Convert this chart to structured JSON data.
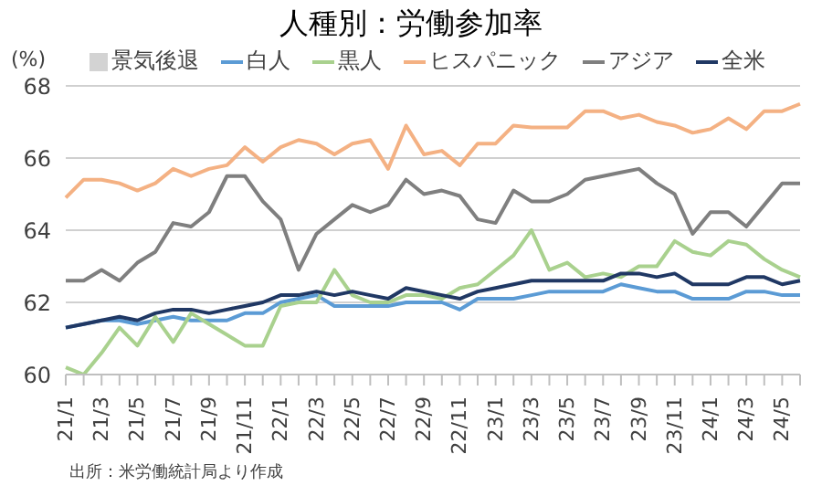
{
  "chart_data": {
    "type": "line",
    "title": "人種別：労働参加率",
    "ylabel": "(%)",
    "categories": [
      "21/1",
      null,
      "21/3",
      null,
      "21/5",
      null,
      "21/7",
      null,
      "21/9",
      null,
      "21/11",
      null,
      "22/1",
      null,
      "22/3",
      null,
      "22/5",
      null,
      "22/7",
      null,
      "22/9",
      null,
      "22/11",
      null,
      "23/1",
      null,
      "23/3",
      null,
      "23/5",
      null,
      "23/7",
      null,
      "23/9",
      null,
      "23/11",
      null,
      "24/1",
      null,
      "24/3",
      null,
      "24/5",
      null
    ],
    "ylim": [
      60,
      68
    ],
    "yticks": [
      60,
      62,
      64,
      66,
      68
    ],
    "grid": "y",
    "legend": "top",
    "marker": "none",
    "line_style": "solid",
    "series": [
      {
        "name": "景気後退",
        "type": "area",
        "color": "#d3d3d3",
        "values": [
          null,
          null,
          null,
          null,
          null,
          null,
          null,
          null,
          null,
          null,
          null,
          null,
          null,
          null,
          null,
          null,
          null,
          null,
          null,
          null,
          null,
          null,
          null,
          null,
          null,
          null,
          null,
          null,
          null,
          null,
          null,
          null,
          null,
          null,
          null,
          null,
          null,
          null,
          null,
          null,
          null,
          null
        ]
      },
      {
        "name": "白人",
        "color": "#5b9bd5",
        "values": [
          61.3,
          61.4,
          61.5,
          61.5,
          61.4,
          61.5,
          61.6,
          61.5,
          61.5,
          61.5,
          61.7,
          61.7,
          62.0,
          62.1,
          62.2,
          61.9,
          61.9,
          61.9,
          61.9,
          62.0,
          62.0,
          62.0,
          61.8,
          62.1,
          62.1,
          62.1,
          62.2,
          62.3,
          62.3,
          62.3,
          62.3,
          62.5,
          62.4,
          62.3,
          62.3,
          62.1,
          62.1,
          62.1,
          62.3,
          62.3,
          62.2,
          62.2
        ]
      },
      {
        "name": "黒人",
        "color": "#a9d18e",
        "values": [
          60.2,
          60.0,
          60.6,
          61.3,
          60.8,
          61.6,
          60.9,
          61.7,
          61.4,
          61.1,
          60.8,
          60.8,
          61.9,
          62.0,
          62.0,
          62.9,
          62.2,
          62.0,
          62.0,
          62.2,
          62.2,
          62.1,
          62.4,
          62.5,
          62.9,
          63.3,
          64.0,
          62.9,
          63.1,
          62.7,
          62.8,
          62.7,
          63.0,
          63.0,
          63.7,
          63.4,
          63.3,
          63.7,
          63.6,
          63.2,
          62.9,
          62.7
        ]
      },
      {
        "name": "ヒスパニック",
        "color": "#f4b183",
        "values": [
          64.9,
          65.4,
          65.4,
          65.3,
          65.1,
          65.3,
          65.7,
          65.5,
          65.7,
          65.8,
          66.3,
          65.9,
          66.3,
          66.5,
          66.4,
          66.1,
          66.4,
          66.5,
          65.7,
          66.9,
          66.1,
          66.2,
          65.8,
          66.4,
          66.4,
          66.9,
          66.85,
          66.85,
          66.85,
          67.3,
          67.3,
          67.1,
          67.2,
          67.0,
          66.9,
          66.7,
          66.8,
          67.1,
          66.8,
          67.3,
          67.3,
          67.5
        ]
      },
      {
        "name": "アジア",
        "color": "#7f7f7f",
        "values": [
          62.6,
          62.6,
          62.9,
          62.6,
          63.1,
          63.4,
          64.2,
          64.1,
          64.5,
          65.5,
          65.5,
          64.8,
          64.3,
          62.9,
          63.9,
          64.3,
          64.7,
          64.5,
          64.7,
          65.4,
          65.0,
          65.1,
          64.95,
          64.3,
          64.2,
          65.1,
          64.8,
          64.8,
          65.0,
          65.4,
          65.5,
          65.6,
          65.7,
          65.3,
          65.0,
          63.9,
          64.5,
          64.5,
          64.1,
          64.7,
          65.3,
          65.3
        ]
      },
      {
        "name": "全米",
        "color": "#203864",
        "values": [
          61.3,
          61.4,
          61.5,
          61.6,
          61.5,
          61.7,
          61.8,
          61.8,
          61.7,
          61.8,
          61.9,
          62.0,
          62.2,
          62.2,
          62.3,
          62.2,
          62.3,
          62.2,
          62.1,
          62.4,
          62.3,
          62.2,
          62.1,
          62.3,
          62.4,
          62.5,
          62.6,
          62.6,
          62.6,
          62.6,
          62.6,
          62.8,
          62.8,
          62.7,
          62.8,
          62.5,
          62.5,
          62.5,
          62.7,
          62.7,
          62.5,
          62.6
        ]
      }
    ],
    "annotations": [
      "出所：米労働統計局より作成"
    ]
  }
}
